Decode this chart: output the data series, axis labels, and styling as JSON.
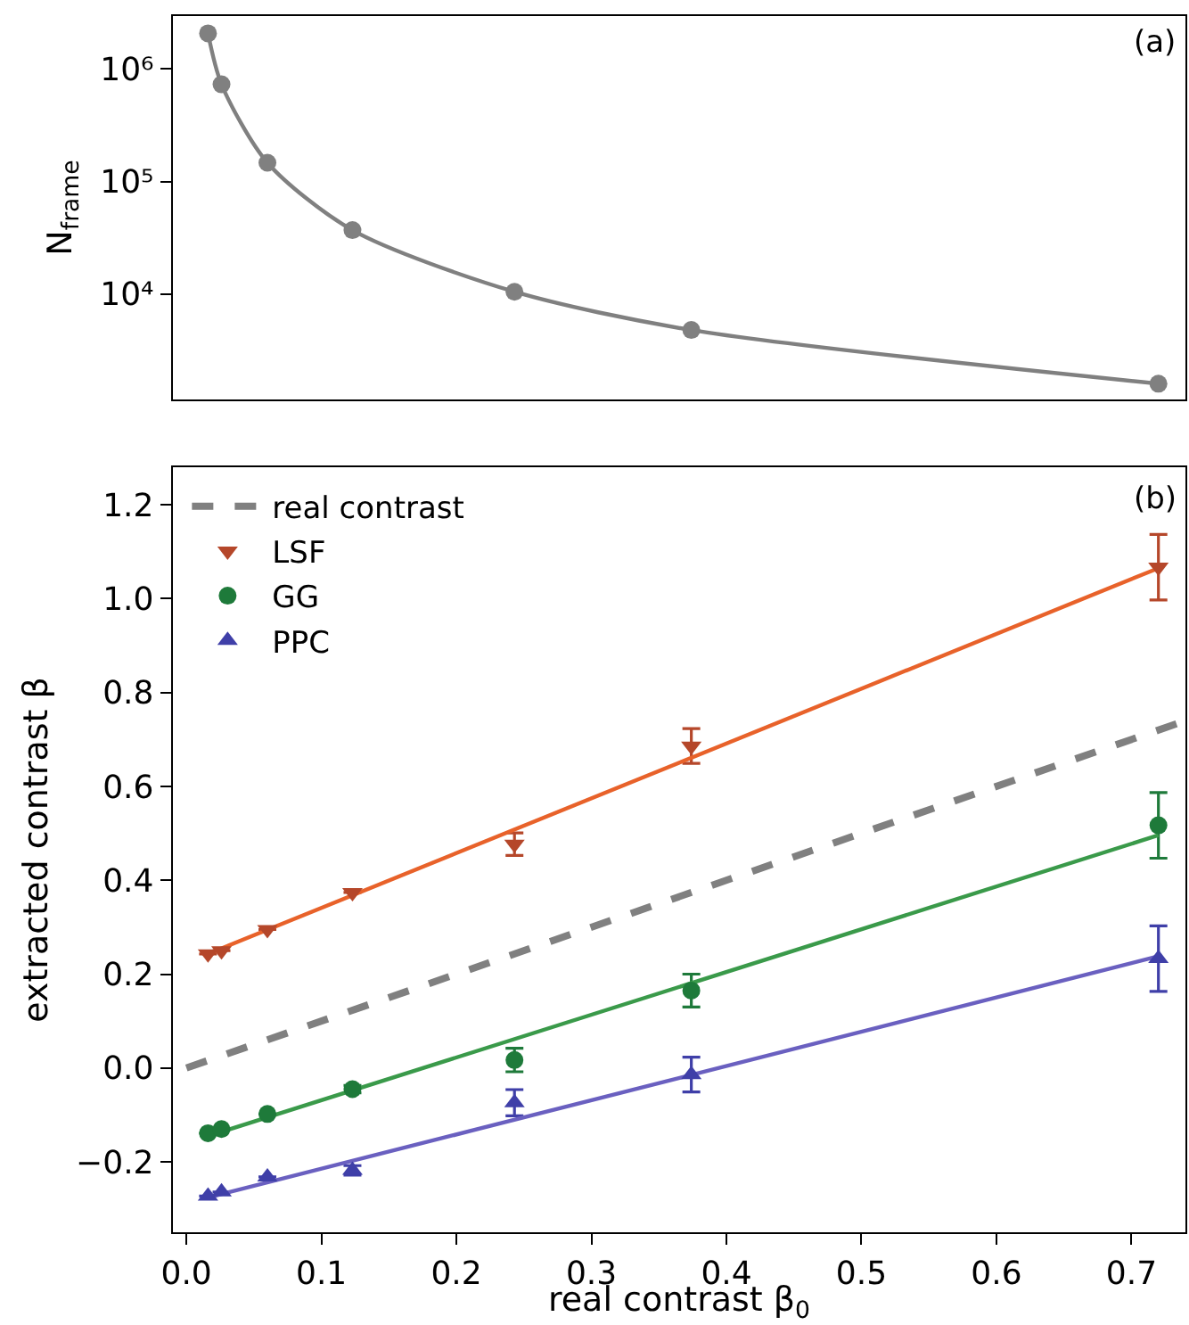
{
  "chart_data": [
    {
      "type": "line",
      "ylabel": "N$_{frame}$",
      "annotations": [
        "(a)"
      ],
      "x": [
        0.016,
        0.026,
        0.06,
        0.123,
        0.243,
        0.374,
        0.72
      ],
      "series": [
        {
          "color": "#808080",
          "values": [
            2070000,
            730000,
            147000,
            37000,
            10500,
            4800,
            1600
          ]
        }
      ],
      "marker": "circle",
      "log": "y",
      "xlim": [
        -0.01,
        0.74
      ],
      "ylim": [
        1160,
        2950000
      ],
      "yticks": [
        {
          "value": 10000,
          "label": "10⁴"
        },
        {
          "value": 100000,
          "label": "10⁵"
        },
        {
          "value": 1000000,
          "label": "10⁶"
        }
      ],
      "tick_labels": "y",
      "grid": false,
      "legend": false
    },
    {
      "type": "scatter",
      "xlabel": "real contrast β$_{0}$",
      "ylabel": "extracted contrast β",
      "annotations": [
        "(b)"
      ],
      "x": [
        0.016,
        0.026,
        0.06,
        0.123,
        0.243,
        0.374,
        0.72
      ],
      "series": [
        {
          "name": "real contrast",
          "type": "line",
          "line_style": "dashed",
          "marker": "none",
          "color": "#808080",
          "x": [
            0,
            0.74
          ],
          "values": [
            0,
            0.74
          ]
        },
        {
          "name": "LSF",
          "marker": "triangle-down",
          "color": "#b5472a",
          "values": [
            0.243,
            0.25,
            0.295,
            0.374,
            0.477,
            0.686,
            1.067
          ],
          "errors": [
            null,
            null,
            null,
            null,
            0.024,
            0.037,
            0.07
          ]
        },
        {
          "name": "GG",
          "marker": "circle",
          "color": "#1e7a3a",
          "values": [
            -0.139,
            -0.13,
            -0.098,
            -0.045,
            0.017,
            0.165,
            0.517
          ],
          "errors": [
            null,
            null,
            null,
            0.008,
            0.025,
            0.035,
            0.07
          ]
        },
        {
          "name": "PPC",
          "marker": "triangle",
          "color": "#3f3fa8",
          "values": [
            -0.273,
            -0.264,
            -0.232,
            -0.218,
            -0.074,
            -0.014,
            0.233
          ],
          "errors": [
            null,
            null,
            null,
            0.01,
            0.028,
            0.037,
            0.07
          ]
        },
        {
          "type": "line",
          "marker": "none",
          "color": "#e8622a",
          "x": [
            0.016,
            0.72
          ],
          "values": [
            0.243,
            1.065
          ]
        },
        {
          "type": "line",
          "marker": "none",
          "color": "#3a9a4a",
          "x": [
            0.016,
            0.72
          ],
          "values": [
            -0.145,
            0.496
          ]
        },
        {
          "type": "line",
          "marker": "none",
          "color": "#6a60c0",
          "x": [
            0.016,
            0.72
          ],
          "values": [
            -0.276,
            0.238
          ]
        }
      ],
      "xlim": [
        -0.01,
        0.74
      ],
      "ylim": [
        -0.35,
        1.28
      ],
      "xticks": [
        {
          "value": 0,
          "label": "0.0"
        },
        0.1,
        0.2,
        0.3,
        0.4,
        0.5,
        0.6,
        0.7
      ],
      "yticks": [
        {
          "value": -0.2,
          "label": "−0.2"
        },
        {
          "value": 0,
          "label": "0.0"
        },
        0.2,
        0.4,
        0.6,
        0.8,
        {
          "value": 1,
          "label": "1.0"
        },
        1.2
      ],
      "grid": false,
      "legend": "top left"
    }
  ]
}
